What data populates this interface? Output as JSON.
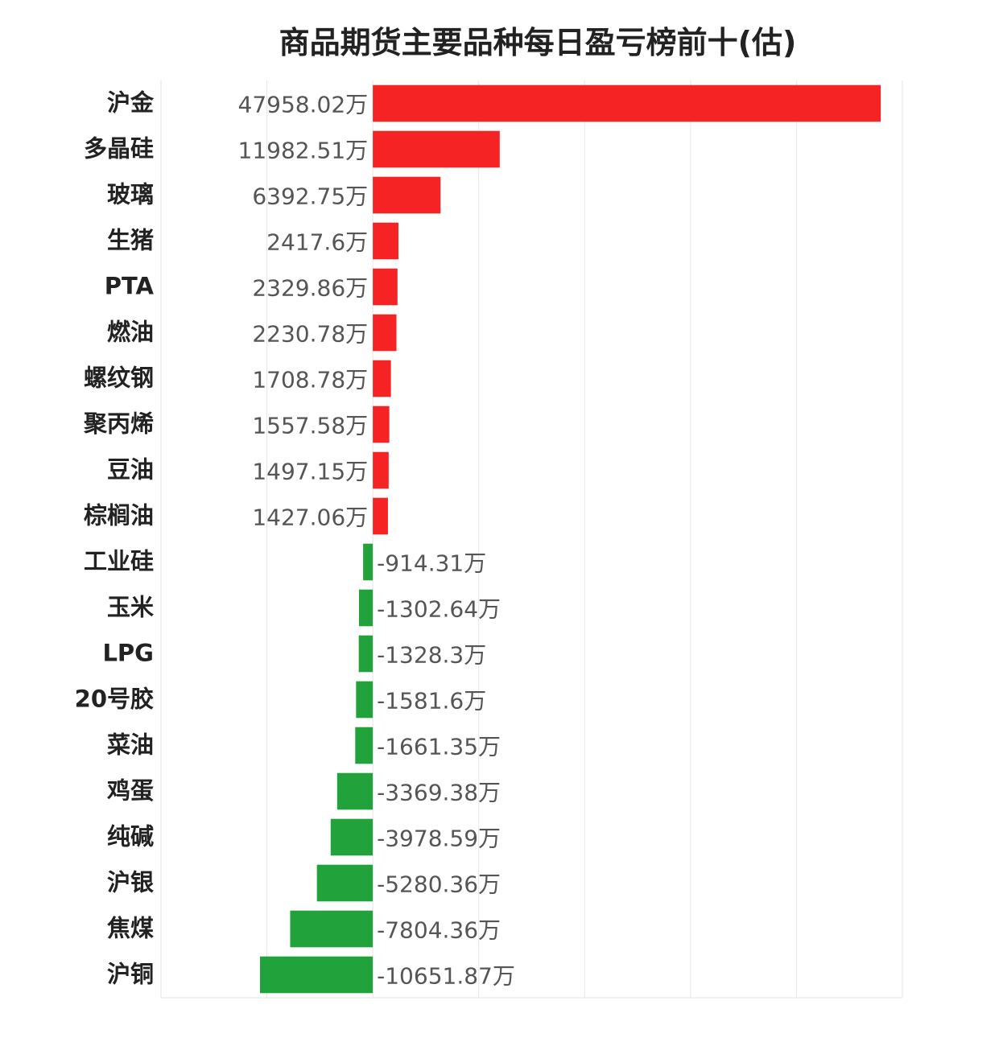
{
  "title": "商品期货主要品种每日盈亏榜前十(估)",
  "colors": {
    "positive": "#f52324",
    "negative": "#21a23a",
    "grid": "#e6e6e6"
  },
  "value_suffix": "万",
  "chart_data": {
    "type": "bar",
    "orientation": "horizontal",
    "title": "商品期货主要品种每日盈亏榜前十(估)",
    "unit": "万",
    "categories": [
      "沪金",
      "多晶硅",
      "玻璃",
      "生猪",
      "PTA",
      "燃油",
      "螺纹钢",
      "聚丙烯",
      "豆油",
      "棕榈油",
      "工业硅",
      "玉米",
      "LPG",
      "20号胶",
      "菜油",
      "鸡蛋",
      "纯碱",
      "沪银",
      "焦煤",
      "沪铜"
    ],
    "values": [
      47958.02,
      11982.51,
      6392.75,
      2417.6,
      2329.86,
      2230.78,
      1708.78,
      1557.58,
      1497.15,
      1427.06,
      -914.31,
      -1302.64,
      -1328.3,
      -1581.6,
      -1661.35,
      -3369.38,
      -3978.59,
      -5280.36,
      -7804.36,
      -10651.87
    ],
    "xlim": [
      -20000,
      50000
    ],
    "grid": true,
    "legend": false
  }
}
